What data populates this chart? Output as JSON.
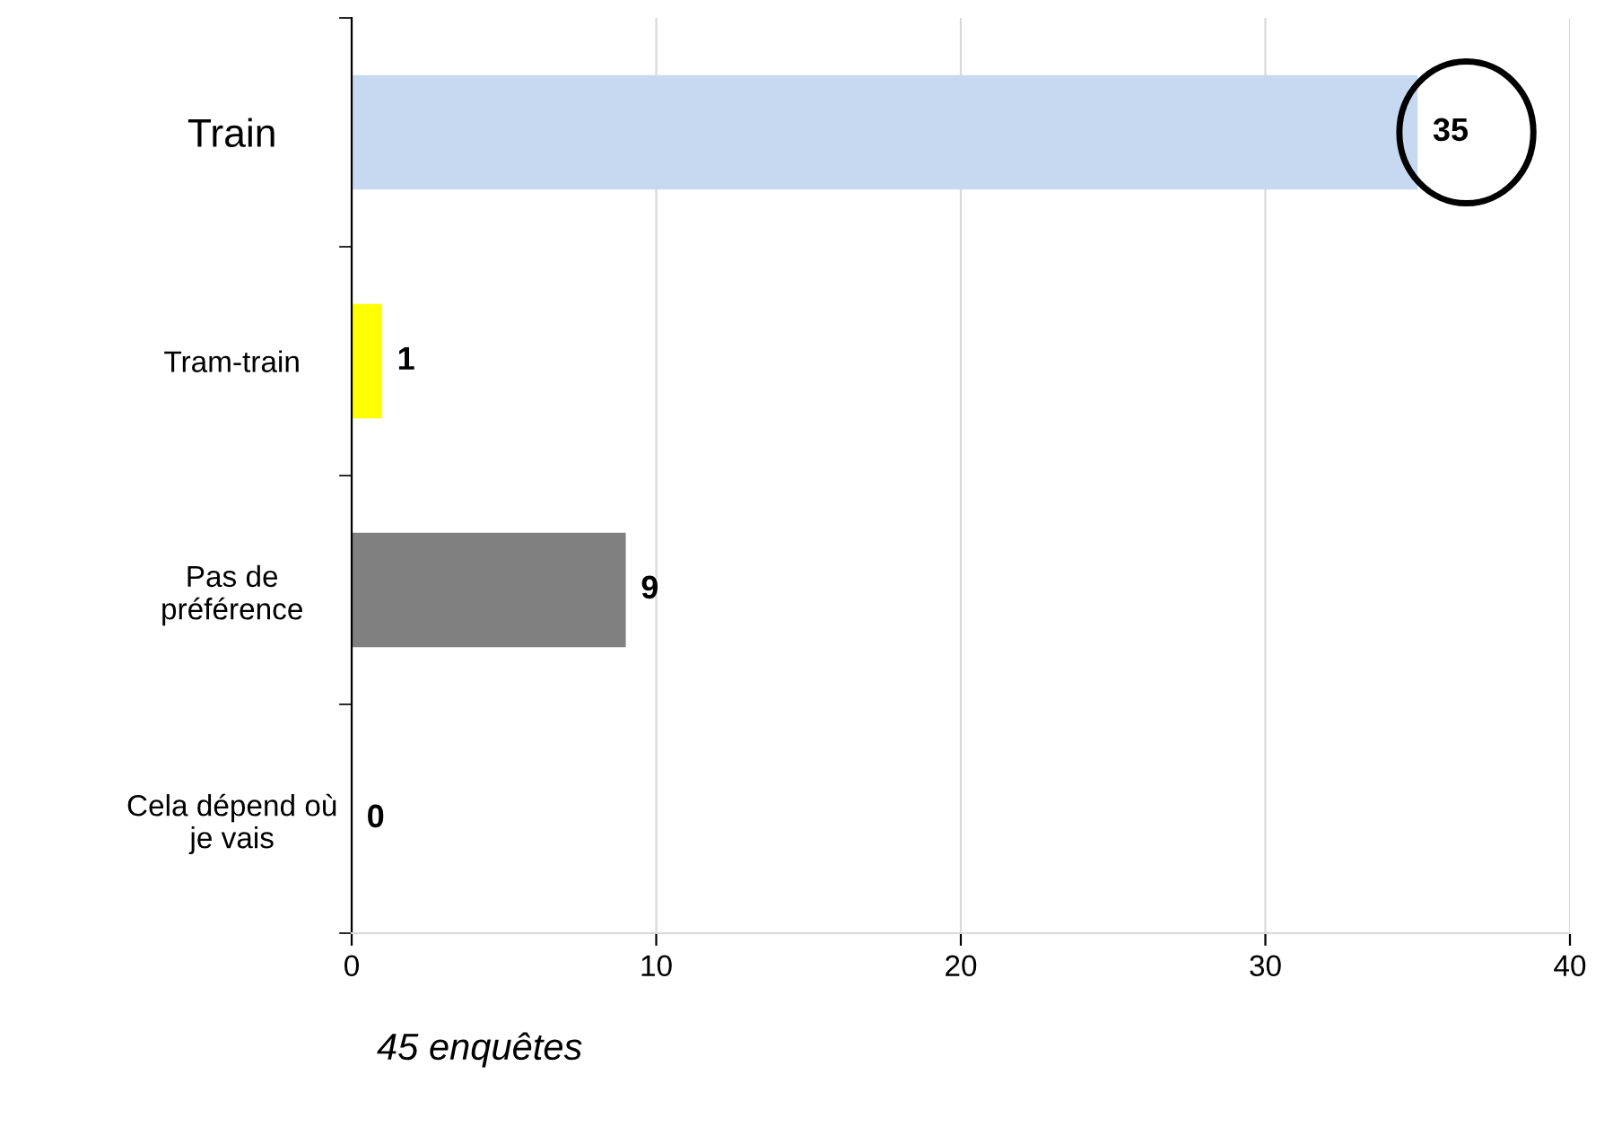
{
  "chart_data": {
    "type": "bar",
    "orientation": "horizontal",
    "categories": [
      "Train",
      "Tram-train",
      "Pas de\npréférence",
      "Cela dépend où\nje vais"
    ],
    "values": [
      35,
      1,
      9,
      0
    ],
    "colors": [
      "#c6d9f1",
      "#ffff00",
      "#808080",
      "#808080"
    ],
    "xlim": [
      0,
      40
    ],
    "xticks": [
      0,
      10,
      20,
      30,
      40
    ],
    "grid": "x",
    "data_labels": true,
    "annotations": [
      "45 enquêtes"
    ]
  }
}
